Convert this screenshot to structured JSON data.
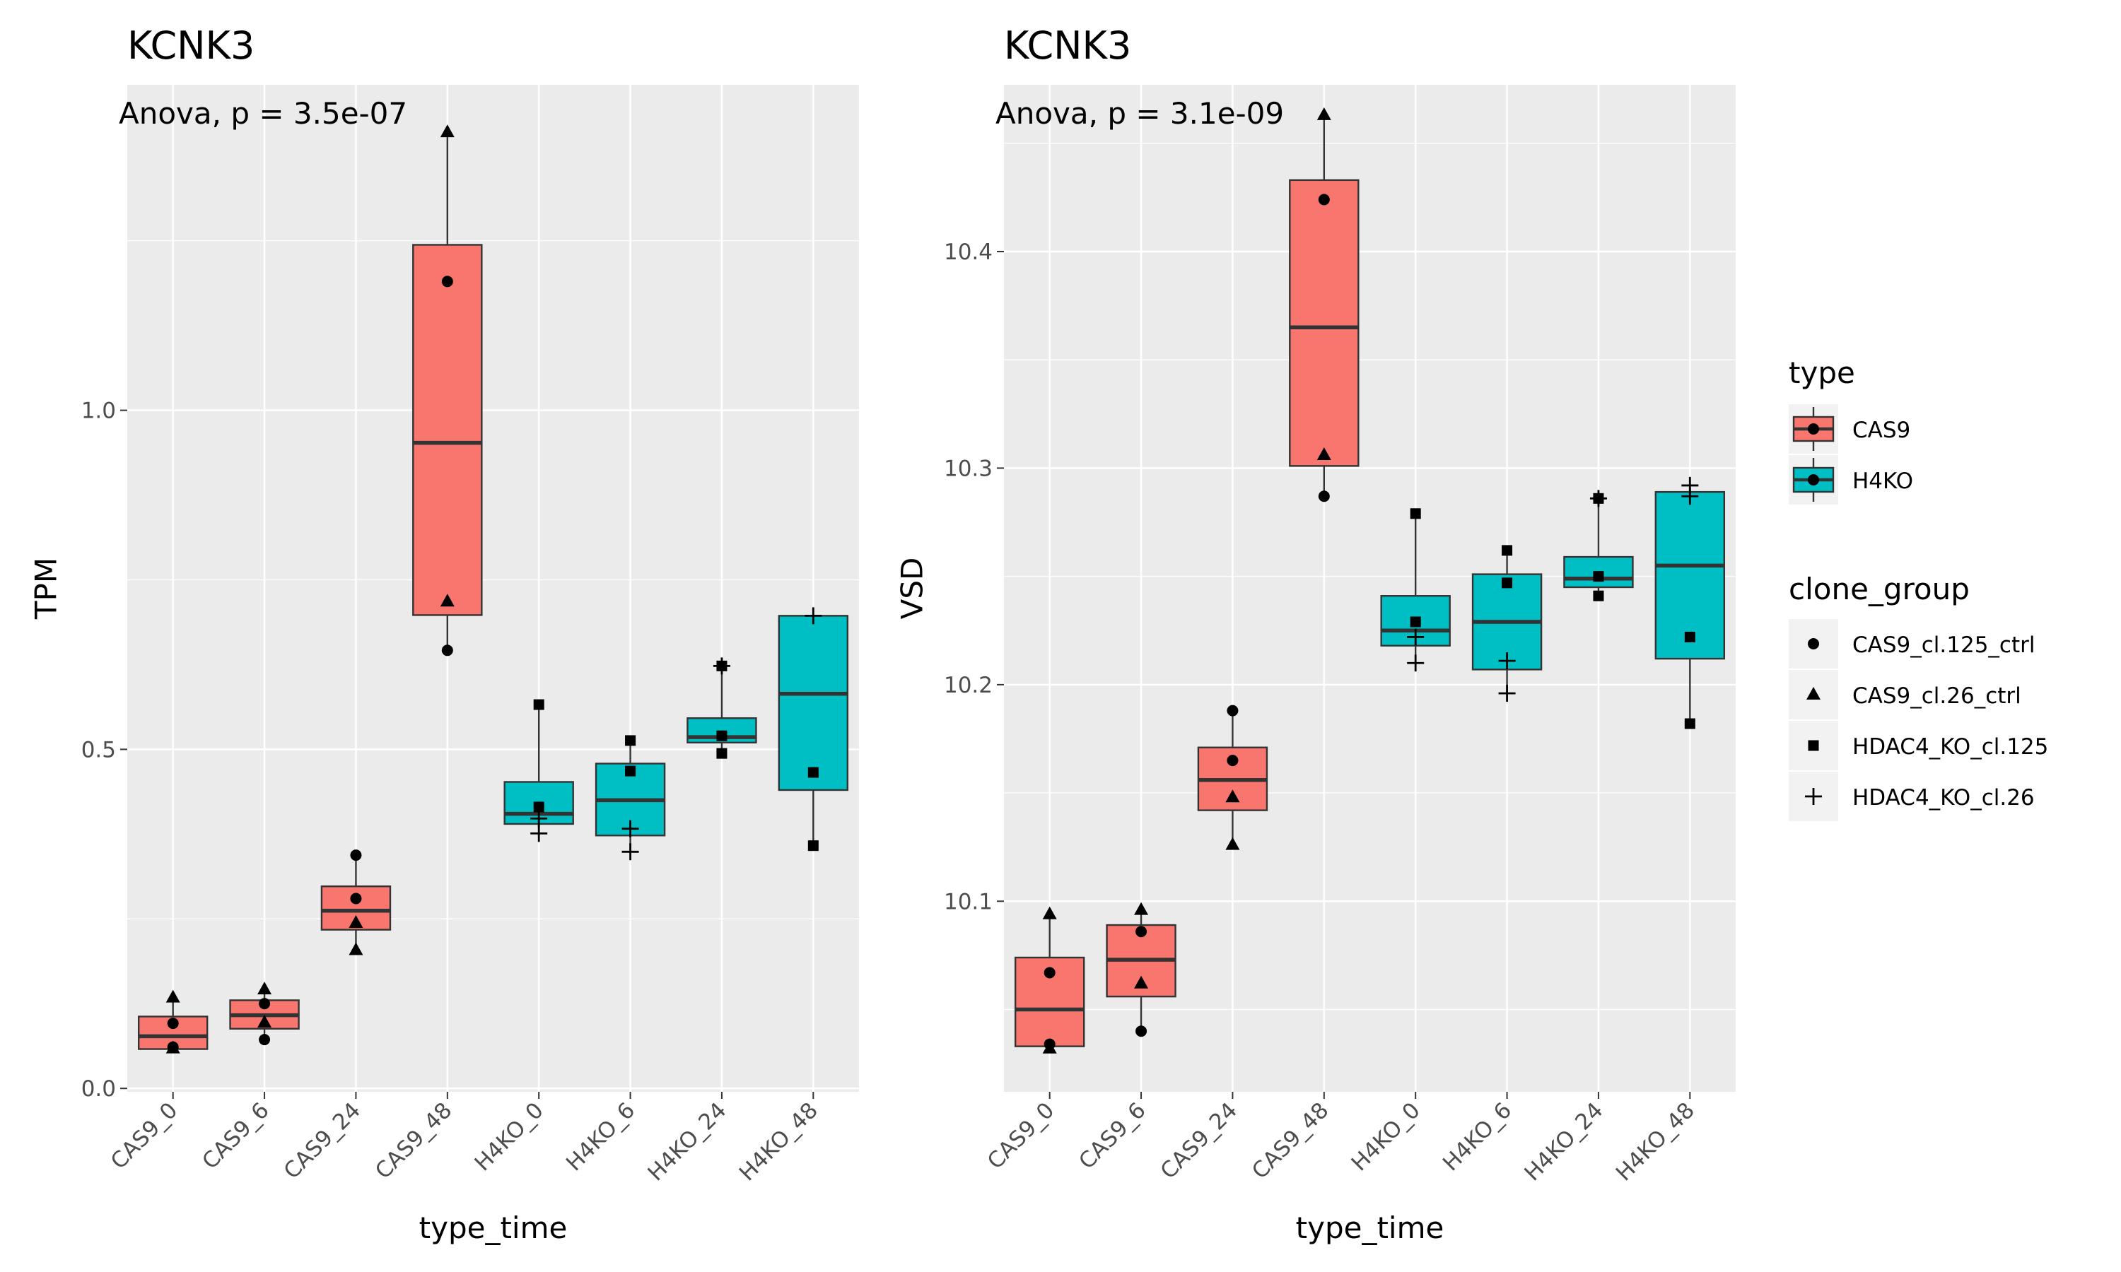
{
  "chart_data": [
    {
      "type": "box",
      "title": "KCNK3",
      "xlabel": "type_time",
      "ylabel": "TPM",
      "annotation": "Anova, p = 3.5e-07",
      "ylim": [
        -0.005,
        1.48
      ],
      "yticks": [
        0.0,
        0.5,
        1.0
      ],
      "ytick_labels": [
        "0.0",
        "0.5",
        "1.0"
      ],
      "categories": [
        "CAS9_0",
        "CAS9_6",
        "CAS9_24",
        "CAS9_48",
        "H4KO_0",
        "H4KO_6",
        "H4KO_24",
        "H4KO_48"
      ],
      "boxes": [
        {
          "type": "CAS9",
          "q1": 0.058,
          "median": 0.077,
          "q3": 0.106,
          "whisker_low": 0.058,
          "whisker_high": 0.134
        },
        {
          "type": "CAS9",
          "q1": 0.088,
          "median": 0.108,
          "q3": 0.13,
          "whisker_low": 0.072,
          "whisker_high": 0.146
        },
        {
          "type": "CAS9",
          "q1": 0.234,
          "median": 0.262,
          "q3": 0.298,
          "whisker_low": 0.204,
          "whisker_high": 0.344
        },
        {
          "type": "CAS9",
          "q1": 0.698,
          "median": 0.952,
          "q3": 1.244,
          "whisker_low": 0.646,
          "whisker_high": 1.41
        },
        {
          "type": "H4KO",
          "q1": 0.39,
          "median": 0.405,
          "q3": 0.452,
          "whisker_low": 0.376,
          "whisker_high": 0.566
        },
        {
          "type": "H4KO",
          "q1": 0.373,
          "median": 0.425,
          "q3": 0.479,
          "whisker_low": 0.349,
          "whisker_high": 0.513
        },
        {
          "type": "H4KO",
          "q1": 0.51,
          "median": 0.518,
          "q3": 0.546,
          "whisker_low": 0.494,
          "whisker_high": 0.623
        },
        {
          "type": "H4KO",
          "q1": 0.44,
          "median": 0.582,
          "q3": 0.697,
          "whisker_low": 0.358,
          "whisker_high": 0.697
        }
      ],
      "points": [
        {
          "cat": 0,
          "group": "CAS9_cl.125_ctrl",
          "y": 0.096
        },
        {
          "cat": 0,
          "group": "CAS9_cl.125_ctrl",
          "y": 0.061
        },
        {
          "cat": 0,
          "group": "CAS9_cl.26_ctrl",
          "y": 0.134
        },
        {
          "cat": 0,
          "group": "CAS9_cl.26_ctrl",
          "y": 0.059
        },
        {
          "cat": 1,
          "group": "CAS9_cl.125_ctrl",
          "y": 0.072
        },
        {
          "cat": 1,
          "group": "CAS9_cl.125_ctrl",
          "y": 0.125
        },
        {
          "cat": 1,
          "group": "CAS9_cl.26_ctrl",
          "y": 0.146
        },
        {
          "cat": 1,
          "group": "CAS9_cl.26_ctrl",
          "y": 0.097
        },
        {
          "cat": 2,
          "group": "CAS9_cl.125_ctrl",
          "y": 0.344
        },
        {
          "cat": 2,
          "group": "CAS9_cl.125_ctrl",
          "y": 0.28
        },
        {
          "cat": 2,
          "group": "CAS9_cl.26_ctrl",
          "y": 0.244
        },
        {
          "cat": 2,
          "group": "CAS9_cl.26_ctrl",
          "y": 0.204
        },
        {
          "cat": 3,
          "group": "CAS9_cl.125_ctrl",
          "y": 1.19
        },
        {
          "cat": 3,
          "group": "CAS9_cl.125_ctrl",
          "y": 0.646
        },
        {
          "cat": 3,
          "group": "CAS9_cl.26_ctrl",
          "y": 1.41
        },
        {
          "cat": 3,
          "group": "CAS9_cl.26_ctrl",
          "y": 0.718
        },
        {
          "cat": 4,
          "group": "HDAC4_KO_cl.125",
          "y": 0.566
        },
        {
          "cat": 4,
          "group": "HDAC4_KO_cl.125",
          "y": 0.415
        },
        {
          "cat": 4,
          "group": "HDAC4_KO_cl.26",
          "y": 0.376
        },
        {
          "cat": 4,
          "group": "HDAC4_KO_cl.26",
          "y": 0.398
        },
        {
          "cat": 5,
          "group": "HDAC4_KO_cl.125",
          "y": 0.513
        },
        {
          "cat": 5,
          "group": "HDAC4_KO_cl.125",
          "y": 0.468
        },
        {
          "cat": 5,
          "group": "HDAC4_KO_cl.26",
          "y": 0.349
        },
        {
          "cat": 5,
          "group": "HDAC4_KO_cl.26",
          "y": 0.383
        },
        {
          "cat": 6,
          "group": "HDAC4_KO_cl.125",
          "y": 0.623
        },
        {
          "cat": 6,
          "group": "HDAC4_KO_cl.125",
          "y": 0.494
        },
        {
          "cat": 6,
          "group": "HDAC4_KO_cl.125",
          "y": 0.52
        },
        {
          "cat": 6,
          "group": "HDAC4_KO_cl.26",
          "y": 0.623
        },
        {
          "cat": 7,
          "group": "HDAC4_KO_cl.125",
          "y": 0.466
        },
        {
          "cat": 7,
          "group": "HDAC4_KO_cl.125",
          "y": 0.358
        },
        {
          "cat": 7,
          "group": "HDAC4_KO_cl.26",
          "y": 0.697
        }
      ]
    },
    {
      "type": "box",
      "title": "KCNK3",
      "xlabel": "type_time",
      "ylabel": "VSD",
      "annotation": "Anova, p = 3.1e-09",
      "ylim": [
        10.012,
        10.477
      ],
      "yticks": [
        10.1,
        10.2,
        10.3,
        10.4
      ],
      "ytick_labels": [
        "10.1",
        "10.2",
        "10.3",
        "10.4"
      ],
      "categories": [
        "CAS9_0",
        "CAS9_6",
        "CAS9_24",
        "CAS9_48",
        "H4KO_0",
        "H4KO_6",
        "H4KO_24",
        "H4KO_48"
      ],
      "boxes": [
        {
          "type": "CAS9",
          "q1": 10.033,
          "median": 10.05,
          "q3": 10.074,
          "whisker_low": 10.033,
          "whisker_high": 10.094
        },
        {
          "type": "CAS9",
          "q1": 10.056,
          "median": 10.073,
          "q3": 10.089,
          "whisker_low": 10.04,
          "whisker_high": 10.096
        },
        {
          "type": "CAS9",
          "q1": 10.142,
          "median": 10.156,
          "q3": 10.171,
          "whisker_low": 10.126,
          "whisker_high": 10.188
        },
        {
          "type": "CAS9",
          "q1": 10.301,
          "median": 10.365,
          "q3": 10.433,
          "whisker_low": 10.287,
          "whisker_high": 10.463
        },
        {
          "type": "H4KO",
          "q1": 10.218,
          "median": 10.225,
          "q3": 10.241,
          "whisker_low": 10.21,
          "whisker_high": 10.279
        },
        {
          "type": "H4KO",
          "q1": 10.207,
          "median": 10.229,
          "q3": 10.251,
          "whisker_low": 10.196,
          "whisker_high": 10.262
        },
        {
          "type": "H4KO",
          "q1": 10.245,
          "median": 10.249,
          "q3": 10.259,
          "whisker_low": 10.241,
          "whisker_high": 10.286
        },
        {
          "type": "H4KO",
          "q1": 10.212,
          "median": 10.255,
          "q3": 10.289,
          "whisker_low": 10.182,
          "whisker_high": 10.292
        }
      ],
      "points": [
        {
          "cat": 0,
          "group": "CAS9_cl.125_ctrl",
          "y": 10.067
        },
        {
          "cat": 0,
          "group": "CAS9_cl.125_ctrl",
          "y": 10.034
        },
        {
          "cat": 0,
          "group": "CAS9_cl.26_ctrl",
          "y": 10.094
        },
        {
          "cat": 0,
          "group": "CAS9_cl.26_ctrl",
          "y": 10.032
        },
        {
          "cat": 1,
          "group": "CAS9_cl.125_ctrl",
          "y": 10.086
        },
        {
          "cat": 1,
          "group": "CAS9_cl.125_ctrl",
          "y": 10.04
        },
        {
          "cat": 1,
          "group": "CAS9_cl.26_ctrl",
          "y": 10.096
        },
        {
          "cat": 1,
          "group": "CAS9_cl.26_ctrl",
          "y": 10.062
        },
        {
          "cat": 2,
          "group": "CAS9_cl.125_ctrl",
          "y": 10.188
        },
        {
          "cat": 2,
          "group": "CAS9_cl.125_ctrl",
          "y": 10.165
        },
        {
          "cat": 2,
          "group": "CAS9_cl.26_ctrl",
          "y": 10.148
        },
        {
          "cat": 2,
          "group": "CAS9_cl.26_ctrl",
          "y": 10.126
        },
        {
          "cat": 3,
          "group": "CAS9_cl.125_ctrl",
          "y": 10.424
        },
        {
          "cat": 3,
          "group": "CAS9_cl.125_ctrl",
          "y": 10.287
        },
        {
          "cat": 3,
          "group": "CAS9_cl.26_ctrl",
          "y": 10.463
        },
        {
          "cat": 3,
          "group": "CAS9_cl.26_ctrl",
          "y": 10.306
        },
        {
          "cat": 4,
          "group": "HDAC4_KO_cl.125",
          "y": 10.279
        },
        {
          "cat": 4,
          "group": "HDAC4_KO_cl.125",
          "y": 10.229
        },
        {
          "cat": 4,
          "group": "HDAC4_KO_cl.26",
          "y": 10.21
        },
        {
          "cat": 4,
          "group": "HDAC4_KO_cl.26",
          "y": 10.222
        },
        {
          "cat": 5,
          "group": "HDAC4_KO_cl.125",
          "y": 10.262
        },
        {
          "cat": 5,
          "group": "HDAC4_KO_cl.125",
          "y": 10.247
        },
        {
          "cat": 5,
          "group": "HDAC4_KO_cl.26",
          "y": 10.196
        },
        {
          "cat": 5,
          "group": "HDAC4_KO_cl.26",
          "y": 10.211
        },
        {
          "cat": 6,
          "group": "HDAC4_KO_cl.125",
          "y": 10.286
        },
        {
          "cat": 6,
          "group": "HDAC4_KO_cl.125",
          "y": 10.241
        },
        {
          "cat": 6,
          "group": "HDAC4_KO_cl.125",
          "y": 10.25
        },
        {
          "cat": 6,
          "group": "HDAC4_KO_cl.26",
          "y": 10.286
        },
        {
          "cat": 7,
          "group": "HDAC4_KO_cl.125",
          "y": 10.222
        },
        {
          "cat": 7,
          "group": "HDAC4_KO_cl.125",
          "y": 10.182
        },
        {
          "cat": 7,
          "group": "HDAC4_KO_cl.26",
          "y": 10.292
        },
        {
          "cat": 7,
          "group": "HDAC4_KO_cl.26",
          "y": 10.287
        }
      ]
    }
  ],
  "legend": {
    "type_title": "type",
    "type_items": [
      {
        "label": "CAS9",
        "color": "#F8766D"
      },
      {
        "label": "H4KO",
        "color": "#00BFC4"
      }
    ],
    "clone_title": "clone_group",
    "clone_items": [
      {
        "label": "CAS9_cl.125_ctrl",
        "shape": "circle"
      },
      {
        "label": "CAS9_cl.26_ctrl",
        "shape": "triangle"
      },
      {
        "label": "HDAC4_KO_cl.125",
        "shape": "square"
      },
      {
        "label": "HDAC4_KO_cl.26",
        "shape": "plus"
      }
    ]
  },
  "colors": {
    "panel_bg": "#EBEBEB",
    "grid": "#FFFFFF",
    "box_outline": "#333333",
    "CAS9": "#F8766D",
    "H4KO": "#00BFC4"
  }
}
